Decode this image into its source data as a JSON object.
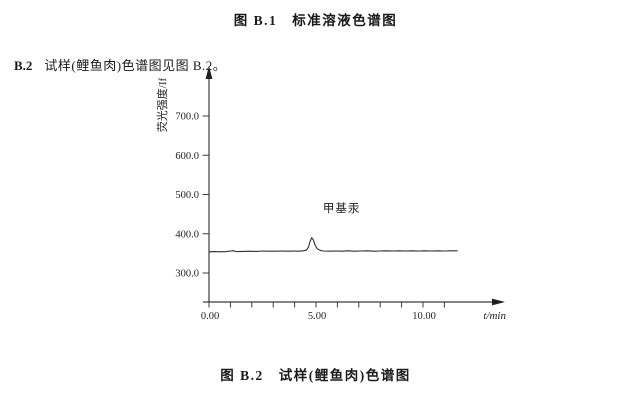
{
  "document": {
    "figure_b1_caption": "图 B.1　标准溶液色谱图",
    "clause_number": "B.2",
    "clause_text": "试样(鲤鱼肉)色谱图见图 B.2。",
    "figure_b2_caption": "图 B.2　试样(鲤鱼肉)色谱图"
  },
  "colors": {
    "text": "#1a1a1a",
    "axis": "#3c3c3c",
    "trace": "#2f2f2f"
  },
  "chart_data": {
    "type": "line",
    "title": "",
    "xlabel": "t/min",
    "ylabel": "荧光强度/If",
    "xlim": [
      0,
      13.8
    ],
    "ylim": [
      226,
      800
    ],
    "grid": false,
    "x_minor_tick_interval": 1,
    "x_minor_tick_range": [
      0,
      11
    ],
    "x_major_ticks": [
      {
        "value": 0,
        "label": "0.00"
      },
      {
        "value": 5,
        "label": "5.00"
      },
      {
        "value": 10,
        "label": "10.00"
      }
    ],
    "y_ticks": [
      {
        "value": 300,
        "label": "300.0"
      },
      {
        "value": 400,
        "label": "400.0"
      },
      {
        "value": 500,
        "label": "500.0"
      },
      {
        "value": 600,
        "label": "600.0"
      },
      {
        "value": 700,
        "label": "700.0"
      }
    ],
    "annotation": {
      "text": "甲基汞",
      "x": 6.2,
      "y": 465
    },
    "series": [
      {
        "name": "试样(鲤鱼肉)",
        "points": [
          [
            0.0,
            354
          ],
          [
            0.25,
            354.5
          ],
          [
            0.5,
            354
          ],
          [
            0.8,
            354.5
          ],
          [
            1.0,
            356
          ],
          [
            1.15,
            356.5
          ],
          [
            1.3,
            354.5
          ],
          [
            1.6,
            355
          ],
          [
            1.9,
            355.5
          ],
          [
            2.2,
            355
          ],
          [
            2.5,
            356
          ],
          [
            2.8,
            355.5
          ],
          [
            3.1,
            355.5
          ],
          [
            3.4,
            356
          ],
          [
            3.7,
            355.5
          ],
          [
            4.0,
            356
          ],
          [
            4.2,
            355.5
          ],
          [
            4.4,
            356.5
          ],
          [
            4.55,
            358
          ],
          [
            4.65,
            366
          ],
          [
            4.72,
            380
          ],
          [
            4.8,
            390
          ],
          [
            4.88,
            384
          ],
          [
            4.95,
            372
          ],
          [
            5.05,
            362
          ],
          [
            5.2,
            357.5
          ],
          [
            5.35,
            356
          ],
          [
            5.6,
            355.5
          ],
          [
            5.9,
            356
          ],
          [
            6.2,
            355.5
          ],
          [
            6.5,
            356.5
          ],
          [
            6.8,
            355.5
          ],
          [
            7.1,
            356
          ],
          [
            7.4,
            356.5
          ],
          [
            7.7,
            355.5
          ],
          [
            8.0,
            356
          ],
          [
            8.3,
            356.5
          ],
          [
            8.6,
            356
          ],
          [
            8.9,
            356.5
          ],
          [
            9.2,
            356
          ],
          [
            9.5,
            356.5
          ],
          [
            9.8,
            356
          ],
          [
            10.1,
            356.5
          ],
          [
            10.4,
            356
          ],
          [
            10.7,
            356.5
          ],
          [
            11.0,
            356
          ],
          [
            11.3,
            356.5
          ],
          [
            11.6,
            356.5
          ]
        ]
      }
    ]
  }
}
